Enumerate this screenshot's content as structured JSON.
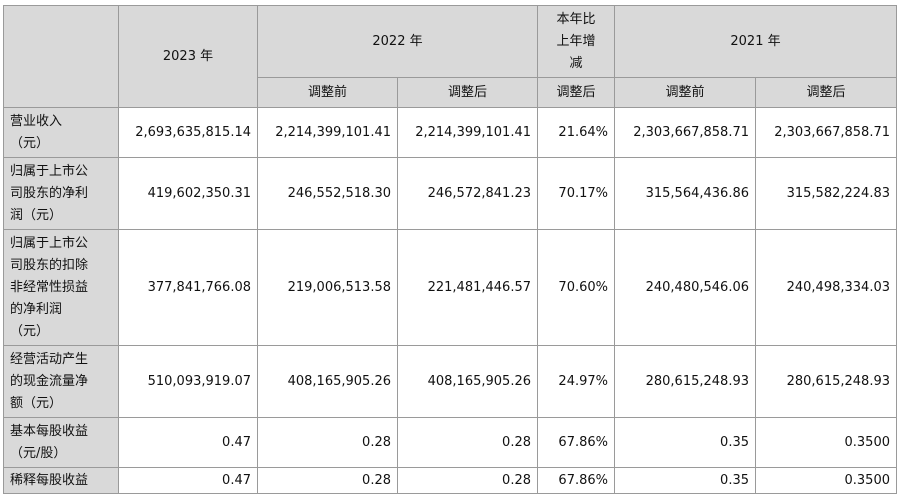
{
  "headers": {
    "corner": "",
    "y2023": "2023 年",
    "y2022": "2022 年",
    "yoy": [
      "本年比",
      "上年增",
      "减"
    ],
    "y2021": "2021 年",
    "before": "调整前",
    "after": "调整后",
    "yoy_after": "调整后"
  },
  "rows": [
    {
      "label": [
        "营业收入",
        "（元）"
      ],
      "values": [
        "2,693,635,815.14",
        "2,214,399,101.41",
        "2,214,399,101.41",
        "21.64%",
        "2,303,667,858.71",
        "2,303,667,858.71"
      ]
    },
    {
      "label": [
        "归属于上市公",
        "司股东的净利",
        "润（元）"
      ],
      "values": [
        "419,602,350.31",
        "246,552,518.30",
        "246,572,841.23",
        "70.17%",
        "315,564,436.86",
        "315,582,224.83"
      ]
    },
    {
      "label": [
        "归属于上市公",
        "司股东的扣除",
        "非经常性损益",
        "的净利润",
        "（元）"
      ],
      "values": [
        "377,841,766.08",
        "219,006,513.58",
        "221,481,446.57",
        "70.60%",
        "240,480,546.06",
        "240,498,334.03"
      ]
    },
    {
      "label": [
        "经营活动产生",
        "的现金流量净",
        "额（元）"
      ],
      "values": [
        "510,093,919.07",
        "408,165,905.26",
        "408,165,905.26",
        "24.97%",
        "280,615,248.93",
        "280,615,248.93"
      ]
    },
    {
      "label": [
        "基本每股收益",
        "（元/股）"
      ],
      "values": [
        "0.47",
        "0.28",
        "0.28",
        "67.86%",
        "0.35",
        "0.3500"
      ]
    },
    {
      "label": [
        "稀释每股收益"
      ],
      "values": [
        "0.47",
        "0.28",
        "0.28",
        "67.86%",
        "0.35",
        "0.3500"
      ]
    }
  ]
}
